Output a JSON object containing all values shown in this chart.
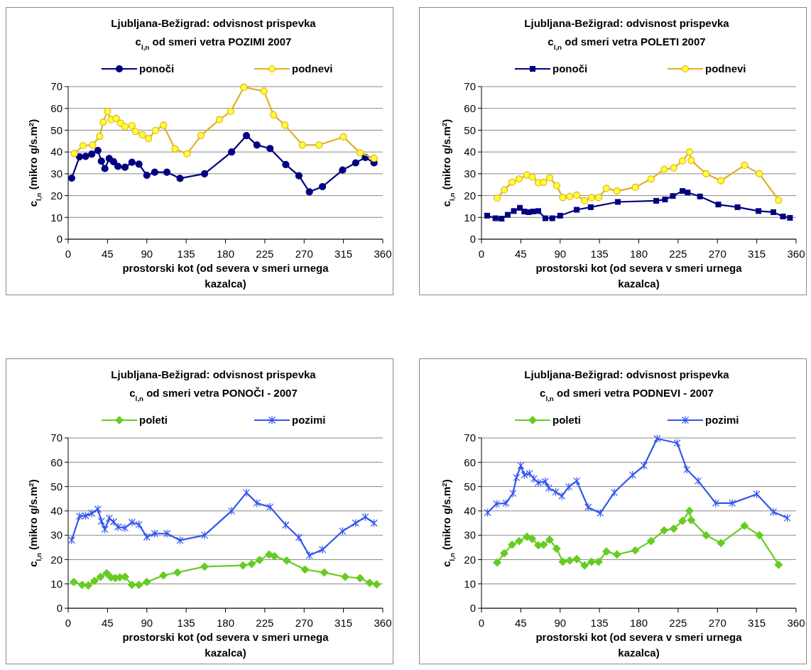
{
  "chart_data": [
    {
      "type": "line",
      "title": "Ljubljana-Bežigrad: odvisnost prispevka\nc$_{l,n}$ od smeri vetra POZIMI 2007",
      "xlabel": "prostorski kot (od severa v smeri urnega kazalca)",
      "ylabel": "c$_{l,n}$ (mikro g/s.m$^{2}$)",
      "xlim": [
        0,
        360
      ],
      "xticks": [
        0,
        45,
        90,
        135,
        180,
        225,
        270,
        315,
        360
      ],
      "ylim": [
        0,
        70
      ],
      "yticks": [
        0,
        10,
        20,
        30,
        40,
        50,
        60,
        70
      ],
      "grid": "y",
      "legend": "top",
      "line_style": "solid",
      "series": [
        {
          "name": "ponoči",
          "color": "#000080",
          "marker": "circle",
          "x": [
            4,
            13,
            20,
            27,
            34,
            38,
            42,
            47,
            52,
            57,
            65,
            73,
            81,
            90,
            99,
            113,
            128,
            156,
            187,
            204,
            216,
            231,
            249,
            264,
            276,
            291,
            314,
            329,
            340,
            350
          ],
          "values": [
            28,
            37.8,
            38,
            39,
            40.7,
            35.8,
            32.4,
            37,
            35.5,
            33.4,
            33,
            35.3,
            34.4,
            29.3,
            30.7,
            30.7,
            27.9,
            30,
            40,
            47.5,
            43.2,
            41.6,
            34.2,
            29.1,
            21.7,
            24.1,
            31.7,
            35,
            37.5,
            35
          ]
        },
        {
          "name": "podnevi",
          "color": "#e0b020",
          "marker": "circle",
          "x": [
            7,
            17,
            28,
            36,
            40,
            45,
            49,
            55,
            60,
            65,
            73,
            77,
            85,
            92,
            100,
            109,
            122,
            136,
            152,
            173,
            186,
            201,
            224,
            235,
            248,
            268,
            287,
            315,
            334,
            350
          ],
          "values": [
            39.3,
            42.9,
            43.2,
            47.2,
            53.7,
            58.6,
            54.8,
            55.4,
            53.2,
            51.6,
            52.1,
            49.4,
            47.8,
            46.1,
            49.9,
            52.3,
            41.5,
            39.1,
            47.6,
            54.8,
            58.6,
            69.7,
            67.9,
            57,
            52.3,
            43.2,
            43.2,
            46.9,
            39.6,
            37.1
          ]
        }
      ]
    },
    {
      "type": "line",
      "title": "Ljubljana-Bežigrad: odvisnost prispevka\nc$_{l,n}$ od smeri vetra POLETI 2007",
      "xlabel": "prostorski kot (od severa v smeri urnega kazalca)",
      "ylabel": "c$_{l,n}$ (mikro g/s.m$^{2}$)",
      "xlim": [
        0,
        360
      ],
      "xticks": [
        0,
        45,
        90,
        135,
        180,
        225,
        270,
        315,
        360
      ],
      "ylim": [
        0,
        70
      ],
      "yticks": [
        0,
        10,
        20,
        30,
        40,
        50,
        60,
        70
      ],
      "grid": "y",
      "legend": "top",
      "line_style": "solid",
      "series": [
        {
          "name": "ponoči",
          "color": "#000080",
          "marker": "square",
          "x": [
            6.5,
            16,
            23,
            30,
            37,
            44,
            49,
            54,
            59,
            65,
            73,
            81,
            90,
            109,
            125,
            156,
            200,
            210,
            219,
            230,
            236,
            250,
            271,
            293,
            317,
            334,
            345,
            353
          ],
          "values": [
            10.8,
            9.6,
            9.4,
            11.2,
            12.9,
            14.4,
            12.7,
            12.4,
            12.7,
            12.9,
            9.6,
            9.6,
            10.8,
            13.5,
            14.7,
            17.1,
            17.6,
            18.2,
            19.8,
            22.1,
            21.4,
            19.6,
            15.9,
            14.7,
            12.9,
            12.4,
            10.4,
            9.8
          ]
        },
        {
          "name": "podnevi",
          "color": "#e0b020",
          "marker": "circle",
          "x": [
            18,
            26,
            35,
            43,
            52,
            58,
            65,
            71,
            78,
            86,
            93,
            101,
            109,
            118,
            126,
            134,
            143,
            155,
            176,
            194,
            209,
            220,
            230,
            238,
            240,
            257,
            274,
            301,
            318,
            340
          ],
          "values": [
            18.8,
            22.6,
            26.1,
            27.6,
            29.4,
            28.5,
            25.9,
            26.1,
            28.2,
            24.5,
            19.1,
            19.6,
            20.2,
            17.6,
            19.1,
            19.1,
            23.3,
            22.1,
            23.8,
            27.6,
            32,
            32.7,
            35.9,
            40,
            36.2,
            30,
            26.8,
            33.9,
            30,
            17.9
          ]
        }
      ]
    },
    {
      "type": "line",
      "title": "Ljubljana-Bežigrad: odvisnost prispevka\nc$_{l,n}$ od smeri vetra PONOČI - 2007",
      "xlabel": "prostorski kot (od severa v smeri urnega kazalca)",
      "ylabel": "c$_{l,n}$ (mikro g/s.m$^{2}$)",
      "xlim": [
        0,
        360
      ],
      "xticks": [
        0,
        45,
        90,
        135,
        180,
        225,
        270,
        315,
        360
      ],
      "ylim": [
        0,
        70
      ],
      "yticks": [
        0,
        10,
        20,
        30,
        40,
        50,
        60,
        70
      ],
      "grid": "y",
      "legend": "top",
      "line_style": "solid",
      "series": [
        {
          "name": "poleti",
          "color": "#66cc22",
          "marker": "diamond",
          "x": [
            6.5,
            16,
            23,
            30,
            37,
            44,
            49,
            54,
            59,
            65,
            73,
            81,
            90,
            109,
            125,
            156,
            200,
            210,
            219,
            230,
            236,
            250,
            271,
            293,
            317,
            334,
            345,
            353
          ],
          "values": [
            10.8,
            9.6,
            9.4,
            11.2,
            12.9,
            14.4,
            12.7,
            12.4,
            12.7,
            12.9,
            9.6,
            9.6,
            10.8,
            13.5,
            14.7,
            17.1,
            17.6,
            18.2,
            19.8,
            22.1,
            21.4,
            19.6,
            15.9,
            14.7,
            12.9,
            12.4,
            10.4,
            9.8
          ]
        },
        {
          "name": "pozimi",
          "color": "#3355ee",
          "marker": "cross",
          "x": [
            4,
            13,
            20,
            27,
            34,
            38,
            42,
            47,
            52,
            57,
            65,
            73,
            81,
            90,
            99,
            113,
            128,
            156,
            187,
            204,
            216,
            231,
            249,
            264,
            276,
            291,
            314,
            329,
            340,
            350
          ],
          "values": [
            28,
            37.8,
            38,
            39,
            40.7,
            35.8,
            32.4,
            37,
            35.5,
            33.4,
            33,
            35.3,
            34.4,
            29.3,
            30.7,
            30.7,
            27.9,
            30,
            40,
            47.5,
            43.2,
            41.6,
            34.2,
            29.1,
            21.7,
            24.1,
            31.7,
            35,
            37.5,
            35
          ]
        }
      ]
    },
    {
      "type": "line",
      "title": "Ljubljana-Bežigrad: odvisnost prispevka\nc$_{l,n}$ od smeri vetra PODNEVI - 2007",
      "xlabel": "prostorski kot (od severa v smeri urnega kazalca)",
      "ylabel": "c$_{l,n}$ (mikro g/s.m$^{2}$)",
      "xlim": [
        0,
        360
      ],
      "xticks": [
        0,
        45,
        90,
        135,
        180,
        225,
        270,
        315,
        360
      ],
      "ylim": [
        0,
        70
      ],
      "yticks": [
        0,
        10,
        20,
        30,
        40,
        50,
        60,
        70
      ],
      "grid": "y",
      "legend": "top",
      "line_style": "solid",
      "series": [
        {
          "name": "poleti",
          "color": "#66cc22",
          "marker": "diamond",
          "x": [
            18,
            26,
            35,
            43,
            52,
            58,
            65,
            71,
            78,
            86,
            93,
            101,
            109,
            118,
            126,
            134,
            143,
            155,
            176,
            194,
            209,
            220,
            230,
            238,
            240,
            257,
            274,
            301,
            318,
            340
          ],
          "values": [
            18.8,
            22.6,
            26.1,
            27.6,
            29.4,
            28.5,
            25.9,
            26.1,
            28.2,
            24.5,
            19.1,
            19.6,
            20.2,
            17.6,
            19.1,
            19.1,
            23.3,
            22.1,
            23.8,
            27.6,
            32,
            32.7,
            35.9,
            40,
            36.2,
            30,
            26.8,
            33.9,
            30,
            17.9
          ]
        },
        {
          "name": "pozimi",
          "color": "#3355ee",
          "marker": "cross",
          "x": [
            7,
            17,
            28,
            36,
            40,
            45,
            49,
            55,
            60,
            65,
            73,
            77,
            85,
            92,
            100,
            109,
            122,
            136,
            152,
            173,
            186,
            201,
            224,
            235,
            248,
            268,
            287,
            315,
            334,
            350
          ],
          "values": [
            39.3,
            42.9,
            43.2,
            47.2,
            53.7,
            58.6,
            54.8,
            55.4,
            53.2,
            51.6,
            52.1,
            49.4,
            47.8,
            46.1,
            49.9,
            52.3,
            41.5,
            39.1,
            47.6,
            54.8,
            58.6,
            69.7,
            67.9,
            57,
            52.3,
            43.2,
            43.2,
            46.9,
            39.6,
            37.1
          ]
        }
      ]
    }
  ]
}
